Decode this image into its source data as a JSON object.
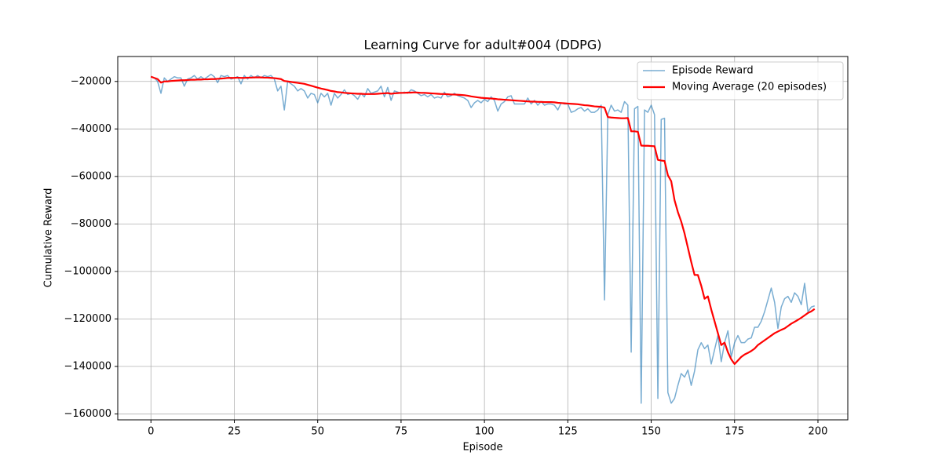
{
  "chart_data": {
    "type": "line",
    "title": "Learning Curve for adult#004 (DDPG)",
    "x_label": "Episode",
    "y_label": "Cumulative Reward",
    "x": [
      0,
      1,
      2,
      3,
      4,
      5,
      6,
      7,
      8,
      9,
      10,
      11,
      12,
      13,
      14,
      15,
      16,
      17,
      18,
      19,
      20,
      21,
      22,
      23,
      24,
      25,
      26,
      27,
      28,
      29,
      30,
      31,
      32,
      33,
      34,
      35,
      36,
      37,
      38,
      39,
      40,
      41,
      42,
      43,
      44,
      45,
      46,
      47,
      48,
      49,
      50,
      51,
      52,
      53,
      54,
      55,
      56,
      57,
      58,
      59,
      60,
      61,
      62,
      63,
      64,
      65,
      66,
      67,
      68,
      69,
      70,
      71,
      72,
      73,
      74,
      75,
      76,
      77,
      78,
      79,
      80,
      81,
      82,
      83,
      84,
      85,
      86,
      87,
      88,
      89,
      90,
      91,
      92,
      93,
      94,
      95,
      96,
      97,
      98,
      99,
      100,
      101,
      102,
      103,
      104,
      105,
      106,
      107,
      108,
      109,
      110,
      111,
      112,
      113,
      114,
      115,
      116,
      117,
      118,
      119,
      120,
      121,
      122,
      123,
      124,
      125,
      126,
      127,
      128,
      129,
      130,
      131,
      132,
      133,
      134,
      135,
      136,
      137,
      138,
      139,
      140,
      141,
      142,
      143,
      144,
      145,
      146,
      147,
      148,
      149,
      150,
      151,
      152,
      153,
      154,
      155,
      156,
      157,
      158,
      159,
      160,
      161,
      162,
      163,
      164,
      165,
      166,
      167,
      168,
      169,
      170,
      171,
      172,
      173,
      174,
      175,
      176,
      177,
      178,
      179,
      180,
      181,
      182,
      183,
      184,
      185,
      186,
      187,
      188,
      189,
      190,
      191,
      192,
      193,
      194,
      195,
      196,
      197,
      198,
      199
    ],
    "series": [
      {
        "name": "Episode Reward",
        "color": "#1f77b4",
        "opacity": 0.6,
        "width": 1.5,
        "values": [
          -18000,
          -18500,
          -20000,
          -25000,
          -18500,
          -20000,
          -19000,
          -18000,
          -18500,
          -18500,
          -22000,
          -19000,
          -18500,
          -17500,
          -19000,
          -18000,
          -19000,
          -18000,
          -17000,
          -18000,
          -20500,
          -17500,
          -18000,
          -17500,
          -19000,
          -18500,
          -18000,
          -21000,
          -17500,
          -19000,
          -17500,
          -18500,
          -17500,
          -18500,
          -17500,
          -18000,
          -17500,
          -19000,
          -24000,
          -22000,
          -32000,
          -20000,
          -21000,
          -22000,
          -24000,
          -23000,
          -24000,
          -27000,
          -25000,
          -25500,
          -29000,
          -25000,
          -26500,
          -25000,
          -30000,
          -25000,
          -27000,
          -25500,
          -23500,
          -25500,
          -25000,
          -26000,
          -27500,
          -25000,
          -26500,
          -23000,
          -25000,
          -24500,
          -24000,
          -22000,
          -26500,
          -22500,
          -28000,
          -24000,
          -24500,
          -25000,
          -24500,
          -25000,
          -23500,
          -24000,
          -25000,
          -26000,
          -25500,
          -26500,
          -25500,
          -27000,
          -26500,
          -27000,
          -24500,
          -26500,
          -26000,
          -25000,
          -26000,
          -26500,
          -27000,
          -28000,
          -31000,
          -29000,
          -28000,
          -29000,
          -27500,
          -28500,
          -26500,
          -28000,
          -32500,
          -29500,
          -28500,
          -26500,
          -26000,
          -29500,
          -29500,
          -29500,
          -29500,
          -27000,
          -29500,
          -28000,
          -30000,
          -28500,
          -30000,
          -29500,
          -29500,
          -30000,
          -32000,
          -29000,
          -29500,
          -29500,
          -33000,
          -32500,
          -31500,
          -31000,
          -32500,
          -31500,
          -33000,
          -33000,
          -32000,
          -30000,
          -112000,
          -34000,
          -30000,
          -32500,
          -32000,
          -33000,
          -28500,
          -30000,
          -134000,
          -31500,
          -30500,
          -155500,
          -32000,
          -33000,
          -30000,
          -34000,
          -153500,
          -36000,
          -35500,
          -151000,
          -155500,
          -153500,
          -148000,
          -143000,
          -144500,
          -141500,
          -148000,
          -142000,
          -133000,
          -130000,
          -132500,
          -131000,
          -139000,
          -133000,
          -127000,
          -138000,
          -130000,
          -125000,
          -136000,
          -130000,
          -127000,
          -130000,
          -130000,
          -128500,
          -128000,
          -123500,
          -123500,
          -121000,
          -117000,
          -112000,
          -107000,
          -113000,
          -124000,
          -115000,
          -111500,
          -110500,
          -113000,
          -109000,
          -110500,
          -114000,
          -105000,
          -117000,
          -115000,
          -114500
        ]
      },
      {
        "name": "Moving Average (20 episodes)",
        "color": "#ff0000",
        "opacity": 1,
        "width": 2.2,
        "values": [
          -18000,
          -18500,
          -19000,
          -20500,
          -20000,
          -20000,
          -19800,
          -19700,
          -19600,
          -19500,
          -19500,
          -19400,
          -19300,
          -19300,
          -19200,
          -19200,
          -19100,
          -19100,
          -19000,
          -19000,
          -18900,
          -18800,
          -18700,
          -18500,
          -18500,
          -18500,
          -18400,
          -18500,
          -18500,
          -18400,
          -18400,
          -18300,
          -18300,
          -18300,
          -18400,
          -18400,
          -18500,
          -18600,
          -18800,
          -19000,
          -19800,
          -20000,
          -20200,
          -20400,
          -20600,
          -20800,
          -21000,
          -21400,
          -21800,
          -22200,
          -22600,
          -23000,
          -23300,
          -23600,
          -24000,
          -24200,
          -24500,
          -24600,
          -24800,
          -24900,
          -25000,
          -25100,
          -25200,
          -25200,
          -25300,
          -25300,
          -25300,
          -25300,
          -25200,
          -25100,
          -25000,
          -24900,
          -25200,
          -25000,
          -24900,
          -24800,
          -24800,
          -24700,
          -24700,
          -24600,
          -24700,
          -24800,
          -24800,
          -24900,
          -25000,
          -25100,
          -25200,
          -25300,
          -25300,
          -25400,
          -25500,
          -25500,
          -25600,
          -25700,
          -25800,
          -26000,
          -26300,
          -26500,
          -26700,
          -26900,
          -27000,
          -27100,
          -27200,
          -27300,
          -27500,
          -27600,
          -27700,
          -27800,
          -27900,
          -28000,
          -28100,
          -28200,
          -28300,
          -28400,
          -28500,
          -28500,
          -28600,
          -28600,
          -28700,
          -28700,
          -28700,
          -28800,
          -29000,
          -29100,
          -29200,
          -29300,
          -29400,
          -29500,
          -29600,
          -29800,
          -30000,
          -30100,
          -30300,
          -30500,
          -30600,
          -30700,
          -31000,
          -35000,
          -35200,
          -35300,
          -35400,
          -35500,
          -35500,
          -35400,
          -41000,
          -41000,
          -41200,
          -47000,
          -47100,
          -47100,
          -47200,
          -47300,
          -53000,
          -53300,
          -53500,
          -59500,
          -62000,
          -70000,
          -75000,
          -79000,
          -84000,
          -90000,
          -96000,
          -101500,
          -101500,
          -106000,
          -111500,
          -110500,
          -116000,
          -121000,
          -126000,
          -131000,
          -130000,
          -134000,
          -137000,
          -139000,
          -137500,
          -136000,
          -135000,
          -134300,
          -133500,
          -132500,
          -131000,
          -130000,
          -129000,
          -128000,
          -127000,
          -126000,
          -125300,
          -124600,
          -124000,
          -123000,
          -122000,
          -121200,
          -120400,
          -119500,
          -118500,
          -117500,
          -116800,
          -115800
        ]
      }
    ],
    "xlim": [
      -9.95,
      208.95
    ],
    "ylim": [
      -162500,
      -9500
    ],
    "xticks": [
      0,
      25,
      50,
      75,
      100,
      125,
      150,
      175,
      200
    ],
    "yticks": [
      {
        "value": -160000,
        "label": "−160000"
      },
      {
        "value": -140000,
        "label": "−140000"
      },
      {
        "value": -120000,
        "label": "−120000"
      },
      {
        "value": -100000,
        "label": "−100000"
      },
      {
        "value": -80000,
        "label": "−80000"
      },
      {
        "value": -60000,
        "label": "−60000"
      },
      {
        "value": -40000,
        "label": "−40000"
      },
      {
        "value": -20000,
        "label": "−20000"
      }
    ],
    "grid": true,
    "legend": "upper-right"
  }
}
